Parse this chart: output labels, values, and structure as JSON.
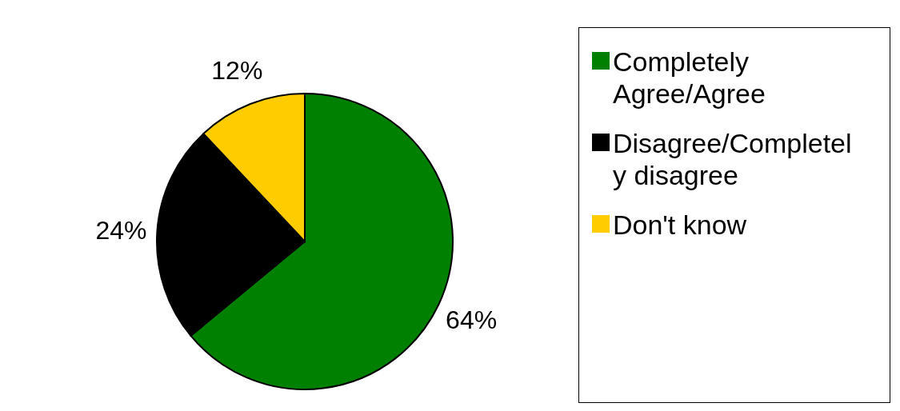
{
  "chart_data": {
    "type": "pie",
    "categories": [
      "Completely Agree/Agree",
      "Disagree/Completely disagree",
      "Don't know"
    ],
    "values": [
      64,
      24,
      12
    ],
    "colors": [
      "#008000",
      "#000000",
      "#ffcc00"
    ],
    "value_labels": [
      "64%",
      "24%",
      "12%"
    ],
    "legend": "right"
  }
}
